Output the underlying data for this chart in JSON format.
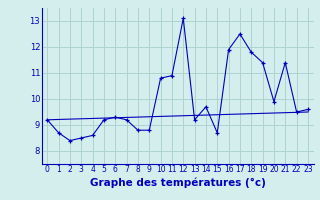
{
  "title": "Graphe des températures (°c)",
  "bg_color": "#d4eeed",
  "grid_color": "#aed4d0",
  "line_color": "#0000bb",
  "axis_color": "#0000bb",
  "xlim": [
    -0.5,
    23.5
  ],
  "ylim": [
    7.5,
    13.5
  ],
  "xticks": [
    0,
    1,
    2,
    3,
    4,
    5,
    6,
    7,
    8,
    9,
    10,
    11,
    12,
    13,
    14,
    15,
    16,
    17,
    18,
    19,
    20,
    21,
    22,
    23
  ],
  "yticks": [
    8,
    9,
    10,
    11,
    12,
    13
  ],
  "series": [
    [
      0,
      9.2
    ],
    [
      1,
      8.7
    ],
    [
      2,
      8.4
    ],
    [
      3,
      8.5
    ],
    [
      4,
      8.6
    ],
    [
      5,
      9.2
    ],
    [
      6,
      9.3
    ],
    [
      7,
      9.2
    ],
    [
      8,
      8.8
    ],
    [
      9,
      8.8
    ],
    [
      10,
      10.8
    ],
    [
      11,
      10.9
    ],
    [
      12,
      13.1
    ],
    [
      13,
      9.2
    ],
    [
      14,
      9.7
    ],
    [
      15,
      8.7
    ],
    [
      16,
      11.9
    ],
    [
      17,
      12.5
    ],
    [
      18,
      11.8
    ],
    [
      19,
      11.4
    ],
    [
      20,
      9.9
    ],
    [
      21,
      11.4
    ],
    [
      22,
      9.5
    ],
    [
      23,
      9.6
    ]
  ],
  "straight_line": [
    [
      0,
      9.2
    ],
    [
      23,
      9.5
    ]
  ],
  "title_fontsize": 7.5,
  "tick_fontsize": 5.5
}
